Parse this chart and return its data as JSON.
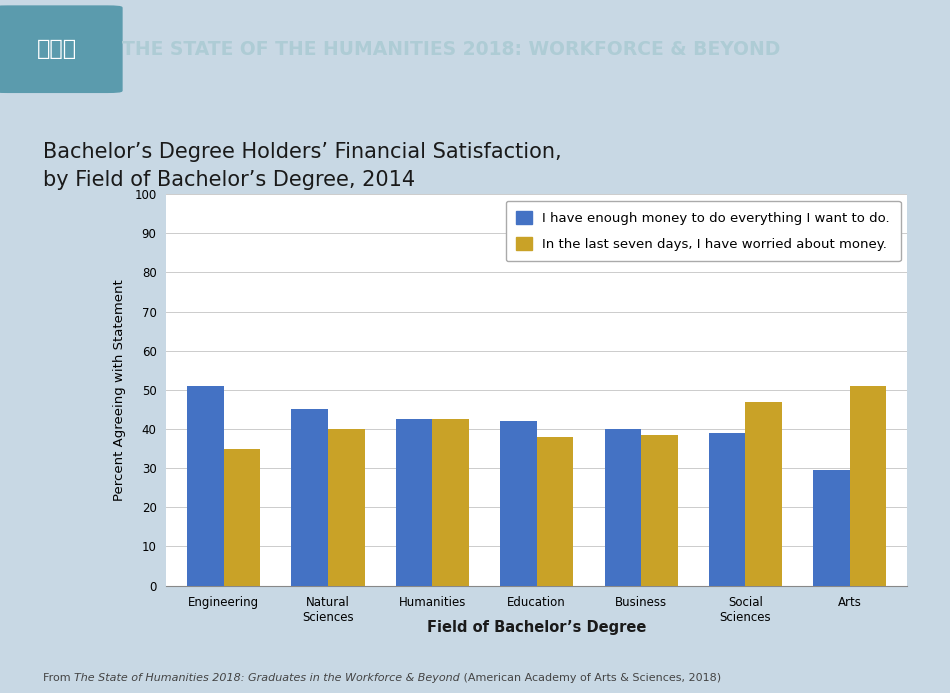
{
  "title_line1": "Bachelor’s Degree Holders’ Financial Satisfaction,",
  "title_line2": "by Field of Bachelor’s Degree, 2014",
  "header_text": "THE STATE OF THE HUMANITIES 2018: WORKFORCE & BEYOND",
  "categories": [
    "Engineering",
    "Natural\nSciences",
    "Humanities",
    "Education",
    "Business",
    "Social\nSciences",
    "Arts"
  ],
  "series1_label": "I have enough money to do everything I want to do.",
  "series2_label": "In the last seven days, I have worried about money.",
  "series1_values": [
    51,
    45,
    42.5,
    42,
    40,
    39,
    29.5
  ],
  "series2_values": [
    35,
    40,
    42.5,
    38,
    38.5,
    47,
    51
  ],
  "series1_color": "#4472C4",
  "series2_color": "#C9A227",
  "ylabel": "Percent Agreeing with Statement",
  "xlabel": "Field of Bachelor’s Degree",
  "ylim": [
    0,
    100
  ],
  "yticks": [
    0,
    10,
    20,
    30,
    40,
    50,
    60,
    70,
    80,
    90,
    100
  ],
  "background_color": "#C8D8E4",
  "chart_bg_color": "#FFFFFF",
  "header_bg_color": "#232323",
  "header_accent_color": "#5B9BAD",
  "teal_strip_color": "#6AAAB8",
  "bar_width": 0.35,
  "legend_fontsize": 9.5,
  "axis_fontsize": 9.5,
  "tick_fontsize": 8.5,
  "title_fontsize": 15,
  "xlabel_fontsize": 10.5,
  "footnote_fontsize": 8
}
